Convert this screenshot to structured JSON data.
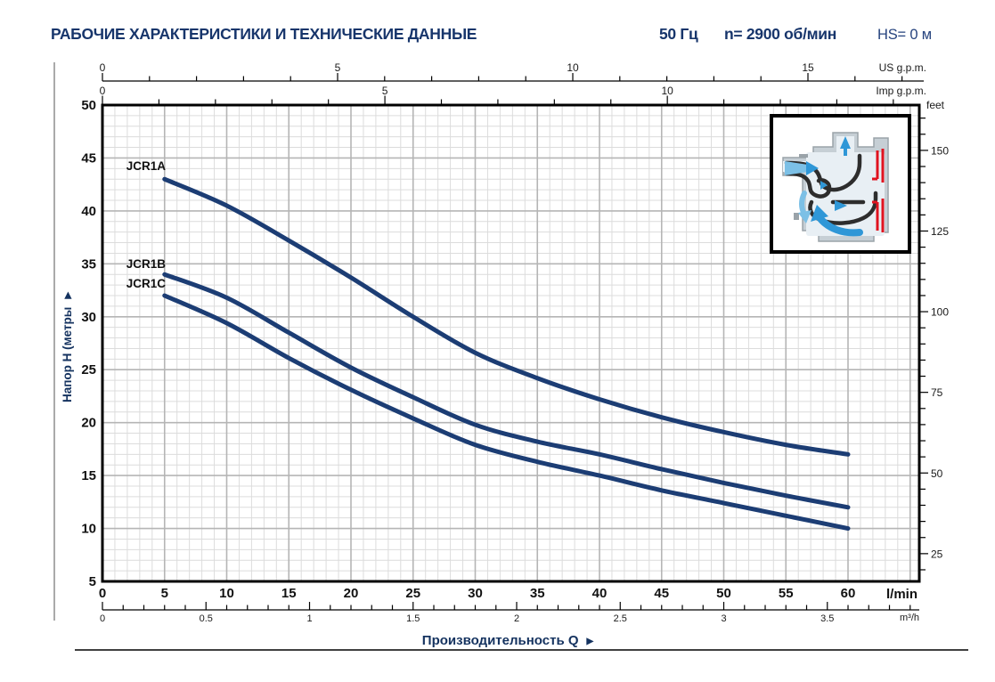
{
  "header": {
    "title": "РАБОЧИЕ ХАРАКТЕРИСТИКИ И ТЕХНИЧЕСКИЕ ДАННЫЕ",
    "frequency": "50 Гц",
    "speed": "n= 2900 об/мин",
    "suction_head": "HS= 0 м"
  },
  "colors": {
    "navy_text": "#17356b",
    "curve": "#1c3d74",
    "grid_minor": "#dcdcdc",
    "grid_major": "#b5b5b5",
    "axis_black": "#000000",
    "inset_red": "#e0131f",
    "inset_blue": "#2f97d7",
    "inset_blue_light": "#7cc0e6",
    "inset_gray": "#c6cfd5"
  },
  "chart_data": {
    "type": "line",
    "title": "",
    "x_lmin": [
      5,
      10,
      15,
      20,
      25,
      30,
      35,
      40,
      45,
      50,
      55,
      60
    ],
    "series": [
      {
        "name": "JCR1A",
        "values": [
          43,
          40.5,
          37.2,
          33.7,
          30.0,
          26.6,
          24.2,
          22.2,
          20.5,
          19.1,
          17.9,
          17.0
        ]
      },
      {
        "name": "JCR1B",
        "values": [
          34,
          31.8,
          28.5,
          25.2,
          22.4,
          19.8,
          18.2,
          17.0,
          15.6,
          14.3,
          13.1,
          12.0
        ]
      },
      {
        "name": "JCR1C",
        "values": [
          32,
          29.4,
          26.1,
          23.1,
          20.4,
          17.9,
          16.3,
          15.0,
          13.6,
          12.4,
          11.2,
          10.0
        ]
      }
    ],
    "xlabel": "Производительность Q",
    "ylabel": "Напор H (метры",
    "axis_arrow": "▶",
    "x_unit": "l/min",
    "xlim_lmin": [
      0,
      65.7
    ],
    "ylim_m": [
      5,
      50
    ],
    "x_ticks_lmin": [
      0,
      5,
      10,
      15,
      20,
      25,
      30,
      35,
      40,
      45,
      50,
      55,
      60
    ],
    "y_ticks_m": [
      5,
      10,
      15,
      20,
      25,
      30,
      35,
      40,
      45,
      50
    ],
    "grid": "minor 1 l/min x 1 m, major 5 l/min x 5 m",
    "legend_position": "curve-start-labels",
    "secondary_axes": {
      "us_gpm": {
        "label": "US g.p.m.",
        "ticks": [
          0,
          5,
          10,
          15
        ],
        "lmin_per_unit": 3.785
      },
      "imp_gpm": {
        "label": "Imp g.p.m.",
        "ticks": [
          0,
          5,
          10
        ],
        "lmin_per_unit": 4.546
      },
      "feet": {
        "label": "feet",
        "ticks": [
          25,
          50,
          75,
          100,
          125,
          150
        ],
        "m_per_unit": 0.3048
      },
      "m3_h": {
        "label": "m³/h",
        "ticks": [
          0,
          0.5,
          1,
          1.5,
          2,
          2.5,
          3,
          3.5
        ],
        "lmin_per_unit": 16.667
      }
    }
  }
}
